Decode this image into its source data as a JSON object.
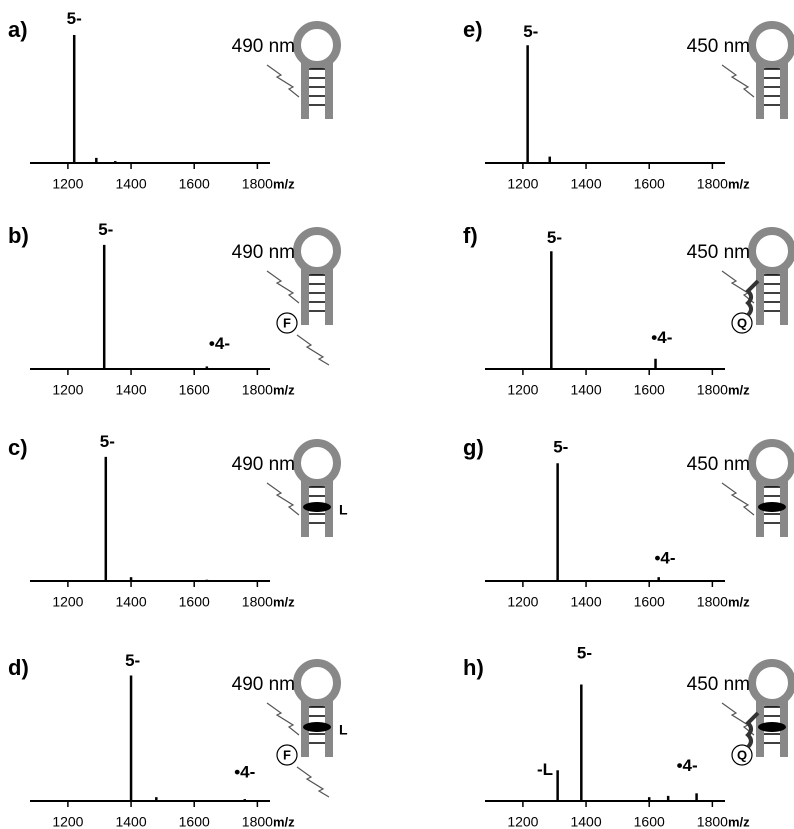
{
  "chart_data": [
    {
      "type": "stick",
      "label": "a)",
      "light": "490 nm",
      "labels": [],
      "x": [
        1220,
        1290,
        1350
      ],
      "values": [
        100,
        4,
        1.5
      ],
      "xlim": [
        1080,
        1840
      ],
      "xticks": [
        1200,
        1400,
        1600,
        1800
      ],
      "xlabel": "m/z",
      "annotations": [
        {
          "text": "5-",
          "x": 1220,
          "y": 112
        }
      ]
    },
    {
      "type": "stick",
      "label": "b)",
      "light": "490 nm",
      "labels": [
        "F"
      ],
      "x": [
        1315,
        1640
      ],
      "values": [
        97,
        2
      ],
      "xlim": [
        1080,
        1840
      ],
      "xticks": [
        1200,
        1400,
        1600,
        1800
      ],
      "xlabel": "m/z",
      "annotations": [
        {
          "text": "5-",
          "x": 1320,
          "y": 108
        },
        {
          "text": "•4-",
          "x": 1680,
          "y": 19
        }
      ]
    },
    {
      "type": "stick",
      "label": "c)",
      "light": "490 nm",
      "labels": [
        "L"
      ],
      "x": [
        1320,
        1400,
        1640
      ],
      "values": [
        97,
        3,
        1
      ],
      "xlim": [
        1080,
        1840
      ],
      "xticks": [
        1200,
        1400,
        1600,
        1800
      ],
      "xlabel": "m/z",
      "annotations": [
        {
          "text": "5-",
          "x": 1325,
          "y": 108
        }
      ]
    },
    {
      "type": "stick",
      "label": "d)",
      "light": "490 nm",
      "labels": [
        "F",
        "L"
      ],
      "x": [
        1400,
        1480,
        1760
      ],
      "values": [
        98,
        3,
        1.5
      ],
      "xlim": [
        1080,
        1840
      ],
      "xticks": [
        1200,
        1400,
        1600,
        1800
      ],
      "xlabel": "m/z",
      "annotations": [
        {
          "text": "5-",
          "x": 1405,
          "y": 109
        },
        {
          "text": "•4-",
          "x": 1760,
          "y": 22
        }
      ]
    },
    {
      "type": "stick",
      "label": "e)",
      "light": "450 nm",
      "labels": [],
      "x": [
        1215,
        1285
      ],
      "values": [
        92,
        5
      ],
      "xlim": [
        1080,
        1840
      ],
      "xticks": [
        1200,
        1400,
        1600,
        1800
      ],
      "xlabel": "m/z",
      "annotations": [
        {
          "text": "5-",
          "x": 1225,
          "y": 102
        }
      ]
    },
    {
      "type": "stick",
      "label": "f)",
      "light": "450 nm",
      "labels": [
        "Q"
      ],
      "x": [
        1290,
        1620
      ],
      "values": [
        92,
        8
      ],
      "xlim": [
        1080,
        1840
      ],
      "xticks": [
        1200,
        1400,
        1600,
        1800
      ],
      "xlabel": "m/z",
      "annotations": [
        {
          "text": "5-",
          "x": 1300,
          "y": 102
        },
        {
          "text": "•4-",
          "x": 1640,
          "y": 24
        }
      ]
    },
    {
      "type": "stick",
      "label": "g)",
      "light": "450 nm",
      "labels": [
        "L"
      ],
      "x": [
        1310,
        1630
      ],
      "values": [
        92,
        3
      ],
      "xlim": [
        1080,
        1840
      ],
      "xticks": [
        1200,
        1400,
        1600,
        1800
      ],
      "xlabel": "m/z",
      "annotations": [
        {
          "text": "5-",
          "x": 1320,
          "y": 104
        },
        {
          "text": "•4-",
          "x": 1650,
          "y": 17
        }
      ]
    },
    {
      "type": "stick",
      "label": "h)",
      "light": "450 nm",
      "labels": [
        "L",
        "Q"
      ],
      "x": [
        1310,
        1385,
        1600,
        1660,
        1750
      ],
      "values": [
        24,
        91,
        3,
        4,
        6
      ],
      "xlim": [
        1080,
        1840
      ],
      "xticks": [
        1200,
        1400,
        1600,
        1800
      ],
      "xlabel": "m/z",
      "annotations": [
        {
          "text": "5-",
          "x": 1395,
          "y": 115
        },
        {
          "text": "-L",
          "x": 1270,
          "y": 24
        },
        {
          "text": "•4-",
          "x": 1720,
          "y": 27
        }
      ]
    }
  ]
}
